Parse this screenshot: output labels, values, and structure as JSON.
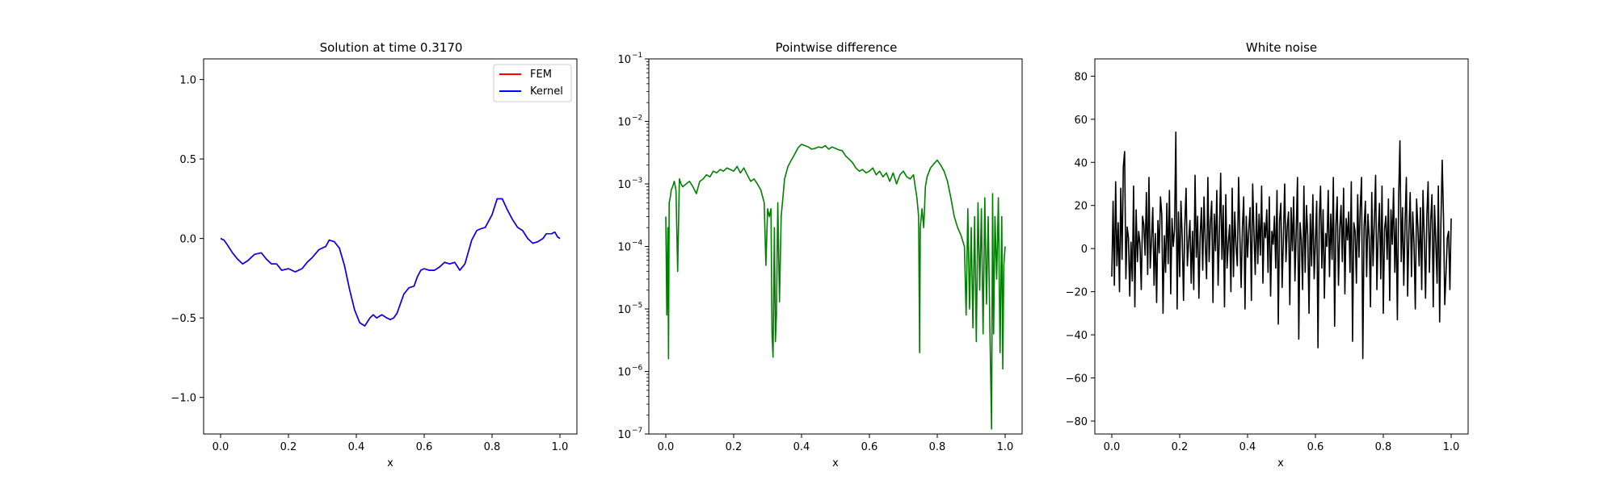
{
  "chart_data": [
    {
      "type": "line",
      "title": "Solution at time 0.3170",
      "xlabel": "x",
      "ylabel": "",
      "xlim": [
        -0.05,
        1.05
      ],
      "ylim": [
        -1.23,
        1.13
      ],
      "xticks": [
        0.0,
        0.2,
        0.4,
        0.6,
        0.8,
        1.0
      ],
      "xtick_labels": [
        "0.0",
        "0.2",
        "0.4",
        "0.6",
        "0.8",
        "1.0"
      ],
      "yticks": [
        -1.0,
        -0.5,
        0.0,
        0.5,
        1.0
      ],
      "ytick_labels": [
        "−1.0",
        "−0.5",
        "0.0",
        "0.5",
        "1.0"
      ],
      "legend_position": "top-right",
      "series": [
        {
          "name": "FEM",
          "color": "#ff0000",
          "x": [
            0.0,
            0.01,
            0.02,
            0.035,
            0.05,
            0.065,
            0.08,
            0.1,
            0.12,
            0.135,
            0.15,
            0.165,
            0.18,
            0.2,
            0.22,
            0.24,
            0.255,
            0.27,
            0.29,
            0.31,
            0.32,
            0.335,
            0.35,
            0.365,
            0.38,
            0.395,
            0.41,
            0.425,
            0.44,
            0.45,
            0.46,
            0.475,
            0.49,
            0.5,
            0.51,
            0.52,
            0.53,
            0.54,
            0.555,
            0.57,
            0.58,
            0.59,
            0.6,
            0.615,
            0.63,
            0.645,
            0.66,
            0.675,
            0.69,
            0.705,
            0.72,
            0.74,
            0.755,
            0.765,
            0.78,
            0.8,
            0.815,
            0.83,
            0.845,
            0.86,
            0.875,
            0.89,
            0.905,
            0.92,
            0.935,
            0.95,
            0.96,
            0.975,
            0.985,
            0.993,
            1.0
          ],
          "values": [
            0.0,
            -0.01,
            -0.04,
            -0.09,
            -0.13,
            -0.16,
            -0.14,
            -0.1,
            -0.09,
            -0.13,
            -0.16,
            -0.16,
            -0.2,
            -0.19,
            -0.21,
            -0.19,
            -0.15,
            -0.12,
            -0.07,
            -0.05,
            -0.01,
            -0.02,
            -0.06,
            -0.17,
            -0.32,
            -0.45,
            -0.53,
            -0.55,
            -0.5,
            -0.48,
            -0.5,
            -0.48,
            -0.5,
            -0.51,
            -0.5,
            -0.47,
            -0.41,
            -0.35,
            -0.31,
            -0.3,
            -0.24,
            -0.2,
            -0.19,
            -0.2,
            -0.2,
            -0.18,
            -0.15,
            -0.16,
            -0.15,
            -0.2,
            -0.16,
            -0.01,
            0.05,
            0.06,
            0.07,
            0.15,
            0.25,
            0.25,
            0.18,
            0.12,
            0.07,
            0.05,
            0.0,
            -0.03,
            -0.02,
            0.0,
            0.03,
            0.03,
            0.04,
            0.01,
            0.0
          ]
        },
        {
          "name": "Kernel",
          "color": "#0000ff",
          "x": [
            0.0,
            0.01,
            0.02,
            0.035,
            0.05,
            0.065,
            0.08,
            0.1,
            0.12,
            0.135,
            0.15,
            0.165,
            0.18,
            0.2,
            0.22,
            0.24,
            0.255,
            0.27,
            0.29,
            0.31,
            0.32,
            0.335,
            0.35,
            0.365,
            0.38,
            0.395,
            0.41,
            0.425,
            0.44,
            0.45,
            0.46,
            0.475,
            0.49,
            0.5,
            0.51,
            0.52,
            0.53,
            0.54,
            0.555,
            0.57,
            0.58,
            0.59,
            0.6,
            0.615,
            0.63,
            0.645,
            0.66,
            0.675,
            0.69,
            0.705,
            0.72,
            0.74,
            0.755,
            0.765,
            0.78,
            0.8,
            0.815,
            0.83,
            0.845,
            0.86,
            0.875,
            0.89,
            0.905,
            0.92,
            0.935,
            0.95,
            0.96,
            0.975,
            0.985,
            0.993,
            1.0
          ],
          "values": [
            0.0,
            -0.01,
            -0.04,
            -0.09,
            -0.13,
            -0.16,
            -0.14,
            -0.1,
            -0.09,
            -0.13,
            -0.16,
            -0.16,
            -0.2,
            -0.19,
            -0.21,
            -0.19,
            -0.15,
            -0.12,
            -0.07,
            -0.05,
            -0.01,
            -0.02,
            -0.06,
            -0.17,
            -0.32,
            -0.45,
            -0.53,
            -0.55,
            -0.5,
            -0.48,
            -0.5,
            -0.48,
            -0.5,
            -0.51,
            -0.5,
            -0.47,
            -0.41,
            -0.35,
            -0.31,
            -0.3,
            -0.24,
            -0.2,
            -0.19,
            -0.2,
            -0.2,
            -0.18,
            -0.15,
            -0.16,
            -0.15,
            -0.2,
            -0.16,
            -0.01,
            0.05,
            0.06,
            0.07,
            0.15,
            0.25,
            0.25,
            0.18,
            0.12,
            0.07,
            0.05,
            0.0,
            -0.03,
            -0.02,
            0.0,
            0.03,
            0.03,
            0.04,
            0.01,
            0.0
          ]
        }
      ]
    },
    {
      "type": "line",
      "title": "Pointwise difference",
      "xlabel": "x",
      "ylabel": "",
      "yscale": "log",
      "xlim": [
        -0.05,
        1.05
      ],
      "ylim": [
        1e-07,
        0.1
      ],
      "xticks": [
        0.0,
        0.2,
        0.4,
        0.6,
        0.8,
        1.0
      ],
      "xtick_labels": [
        "0.0",
        "0.2",
        "0.4",
        "0.6",
        "0.8",
        "1.0"
      ],
      "yticks": [
        1e-07,
        1e-06,
        1e-05,
        0.0001,
        0.001,
        0.01,
        0.1
      ],
      "ytick_labels": [
        [
          "10",
          "−7"
        ],
        [
          "10",
          "−6"
        ],
        [
          "10",
          "−5"
        ],
        [
          "10",
          "−4"
        ],
        [
          "10",
          "−3"
        ],
        [
          "10",
          "−2"
        ],
        [
          "10",
          "−1"
        ]
      ],
      "series": [
        {
          "name": "",
          "color": "#008000",
          "x": [
            0.0,
            0.003,
            0.006,
            0.008,
            0.01,
            0.013,
            0.016,
            0.02,
            0.025,
            0.03,
            0.035,
            0.04,
            0.045,
            0.05,
            0.06,
            0.07,
            0.08,
            0.09,
            0.1,
            0.11,
            0.12,
            0.13,
            0.14,
            0.15,
            0.16,
            0.17,
            0.18,
            0.19,
            0.2,
            0.21,
            0.22,
            0.23,
            0.24,
            0.25,
            0.26,
            0.27,
            0.28,
            0.29,
            0.295,
            0.3,
            0.305,
            0.31,
            0.313,
            0.316,
            0.32,
            0.323,
            0.326,
            0.33,
            0.335,
            0.34,
            0.345,
            0.35,
            0.36,
            0.37,
            0.38,
            0.39,
            0.4,
            0.41,
            0.42,
            0.43,
            0.44,
            0.45,
            0.46,
            0.47,
            0.48,
            0.49,
            0.5,
            0.51,
            0.52,
            0.53,
            0.54,
            0.55,
            0.56,
            0.57,
            0.58,
            0.59,
            0.6,
            0.61,
            0.62,
            0.63,
            0.64,
            0.65,
            0.66,
            0.67,
            0.68,
            0.69,
            0.7,
            0.71,
            0.72,
            0.73,
            0.735,
            0.74,
            0.745,
            0.748,
            0.75,
            0.755,
            0.76,
            0.765,
            0.77,
            0.78,
            0.79,
            0.8,
            0.81,
            0.82,
            0.83,
            0.84,
            0.85,
            0.86,
            0.87,
            0.88,
            0.885,
            0.89,
            0.895,
            0.9,
            0.905,
            0.91,
            0.915,
            0.92,
            0.925,
            0.93,
            0.935,
            0.94,
            0.945,
            0.95,
            0.955,
            0.96,
            0.963,
            0.966,
            0.97,
            0.975,
            0.98,
            0.985,
            0.99,
            0.993,
            0.996,
            1.0
          ],
          "values": [
            0.0003,
            8e-06,
            0.0002,
            1.6e-06,
            0.0005,
            0.0006,
            0.0008,
            0.0009,
            0.0011,
            0.0008,
            4e-05,
            0.0012,
            0.001,
            0.0009,
            0.001,
            0.0011,
            0.0009,
            0.0007,
            0.0011,
            0.0012,
            0.0014,
            0.0013,
            0.0016,
            0.0015,
            0.0017,
            0.0016,
            0.0018,
            0.0017,
            0.0016,
            0.0019,
            0.0015,
            0.0018,
            0.0014,
            0.0011,
            0.0012,
            0.001,
            0.0008,
            0.0005,
            5e-05,
            0.0004,
            0.0003,
            0.0004,
            4e-06,
            1.7e-06,
            0.0002,
            3e-06,
            8e-06,
            0.0005,
            1.3e-05,
            0.0003,
            0.0006,
            0.0012,
            0.0019,
            0.0024,
            0.003,
            0.0038,
            0.0043,
            0.0041,
            0.0039,
            0.0036,
            0.0037,
            0.0039,
            0.0038,
            0.0041,
            0.0036,
            0.0039,
            0.0037,
            0.0035,
            0.0034,
            0.0028,
            0.0025,
            0.0022,
            0.0018,
            0.0016,
            0.0017,
            0.0015,
            0.0016,
            0.0018,
            0.0014,
            0.0016,
            0.0013,
            0.0015,
            0.0011,
            0.0015,
            0.001,
            0.0014,
            0.0016,
            0.0013,
            0.0012,
            0.0014,
            0.0009,
            0.0006,
            0.0003,
            2e-06,
            0.0002,
            0.0004,
            0.0002,
            0.0009,
            0.0013,
            0.0018,
            0.0021,
            0.0024,
            0.002,
            0.0016,
            0.0011,
            0.0006,
            0.0003,
            0.0002,
            0.00015,
            0.0001,
            8e-06,
            0.0004,
            1e-05,
            0.0002,
            5e-06,
            0.0003,
            3e-06,
            0.0005,
            2e-05,
            0.0004,
            4e-06,
            0.0006,
            1.2e-05,
            0.0003,
            5e-06,
            1.2e-07,
            0.0007,
            4e-06,
            0.0003,
            3e-05,
            0.0006,
            2e-06,
            0.0003,
            1.1e-06,
            5e-05,
            0.0001
          ]
        }
      ]
    },
    {
      "type": "line",
      "title": "White noise",
      "xlabel": "x",
      "ylabel": "",
      "xlim": [
        -0.05,
        1.05
      ],
      "ylim": [
        -86,
        88
      ],
      "xticks": [
        0.0,
        0.2,
        0.4,
        0.6,
        0.8,
        1.0
      ],
      "xtick_labels": [
        "0.0",
        "0.2",
        "0.4",
        "0.6",
        "0.8",
        "1.0"
      ],
      "yticks": [
        -80,
        -60,
        -40,
        -20,
        0,
        20,
        40,
        60,
        80
      ],
      "ytick_labels": [
        "−80",
        "−60",
        "−40",
        "−20",
        "0",
        "20",
        "40",
        "60",
        "80"
      ],
      "series": [
        {
          "name": "",
          "color": "#000000",
          "values": [
            -13,
            22,
            -17,
            31,
            -8,
            12,
            -20,
            28,
            -5,
            38,
            45,
            -14,
            10,
            5,
            -22,
            3,
            -15,
            29,
            -27,
            18,
            -6,
            8,
            2,
            -19,
            15,
            11,
            -3,
            26,
            -12,
            33,
            -9,
            4,
            19,
            -17,
            7,
            -25,
            13,
            -2,
            24,
            16,
            -30,
            6,
            -11,
            21,
            -7,
            27,
            -21,
            14,
            1,
            9,
            54,
            -28,
            17,
            -13,
            22,
            5,
            -24,
            11,
            28,
            -8,
            3,
            13,
            -16,
            8,
            -19,
            34,
            -4,
            15,
            -23,
            6,
            19,
            -10,
            24,
            2,
            -14,
            33,
            -6,
            12,
            22,
            -25,
            16,
            -1,
            27,
            -17,
            7,
            35,
            -5,
            20,
            -27,
            25,
            -9,
            3,
            11,
            -20,
            28,
            -13,
            17,
            1,
            -8,
            33,
            6,
            -18,
            10,
            24,
            -28,
            15,
            -4,
            9,
            19,
            -24,
            30,
            8,
            -12,
            21,
            -7,
            16,
            -3,
            29,
            -16,
            12,
            5,
            18,
            -11,
            24,
            -22,
            8,
            2,
            15,
            -9,
            27,
            -35,
            13,
            21,
            -18,
            5,
            30,
            -6,
            10,
            17,
            -26,
            19,
            -1,
            24,
            -15,
            8,
            33,
            -42,
            12,
            4,
            -19,
            29,
            -11,
            20,
            6,
            -30,
            16,
            -8,
            25,
            -14,
            3,
            22,
            -46,
            13,
            29,
            -9,
            18,
            -23,
            7,
            1,
            27,
            -13,
            16,
            -5,
            33,
            -36,
            11,
            24,
            -17,
            9,
            20,
            -6,
            28,
            -21,
            14,
            4,
            17,
            -11,
            31,
            -43,
            12,
            8,
            -16,
            25,
            -4,
            19,
            33,
            -51,
            10,
            22,
            -13,
            16,
            5,
            -27,
            26,
            -8,
            13,
            34,
            -19,
            7,
            21,
            -14,
            29,
            -30,
            9,
            15,
            -5,
            23,
            -24,
            18,
            2,
            28,
            -11,
            14,
            -33,
            24,
            50,
            -6,
            19,
            -17,
            12,
            33,
            -22,
            8,
            26,
            -13,
            17,
            2,
            -28,
            23,
            10,
            -8,
            19,
            -19,
            27,
            5,
            -23,
            15,
            31,
            -11,
            13,
            25,
            -27,
            20,
            3,
            -16,
            29,
            -34,
            12,
            41,
            15,
            -26,
            -11,
            5,
            8,
            -19,
            14
          ]
        }
      ]
    }
  ]
}
